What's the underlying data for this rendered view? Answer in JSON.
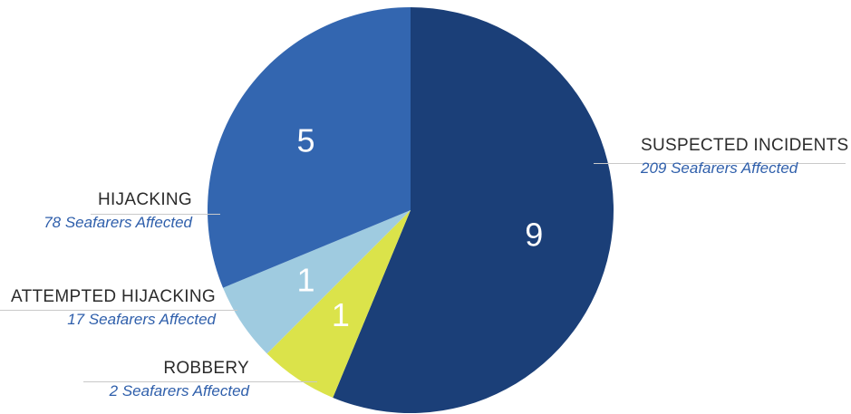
{
  "chart_data": {
    "type": "pie",
    "slices": [
      {
        "label": "SUSPECTED INCIDENTS",
        "value": 9,
        "sublabel": "209 Seafarers Affected",
        "color": "#1b3f78"
      },
      {
        "label": "ROBBERY",
        "value": 1,
        "sublabel": "2 Seafarers Affected",
        "color": "#dbe34a"
      },
      {
        "label": "ATTEMPTED HIJACKING",
        "value": 1,
        "sublabel": "17 Seafarers Affected",
        "color": "#9fcbe0"
      },
      {
        "label": "HIJACKING",
        "value": 5,
        "sublabel": "78 Seafarers Affected",
        "color": "#3366b0"
      }
    ]
  }
}
